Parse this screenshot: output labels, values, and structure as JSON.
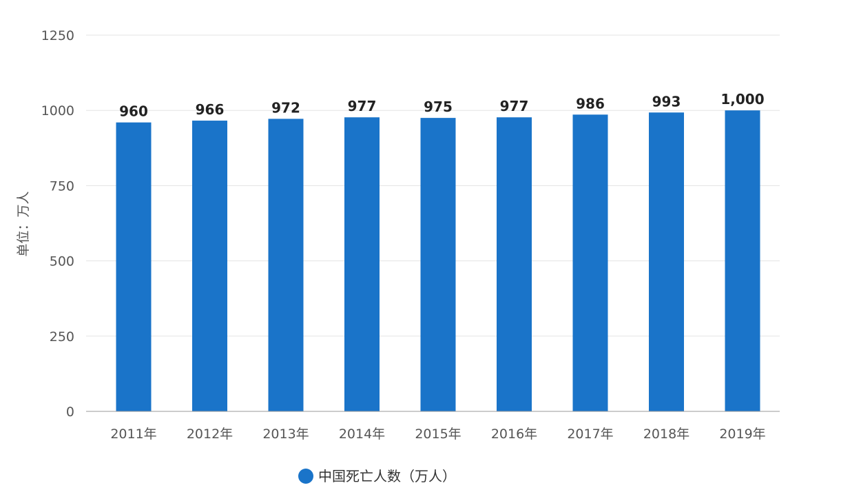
{
  "chart_data": {
    "type": "bar",
    "ylabel": "单位：万人",
    "ylim": [
      0,
      1250
    ],
    "yticks": [
      0,
      250,
      500,
      750,
      1000,
      1250
    ],
    "grid": true,
    "legend_position": "bottom-center",
    "categories": [
      "2011年",
      "2012年",
      "2013年",
      "2014年",
      "2015年",
      "2016年",
      "2017年",
      "2018年",
      "2019年"
    ],
    "series": [
      {
        "name": "中国死亡人数（万人）",
        "color": "#1a74c9",
        "values": [
          960,
          966,
          972,
          977,
          975,
          977,
          986,
          993,
          1000
        ],
        "data_labels": [
          "960",
          "966",
          "972",
          "977",
          "975",
          "977",
          "986",
          "993",
          "1,000"
        ]
      }
    ]
  }
}
